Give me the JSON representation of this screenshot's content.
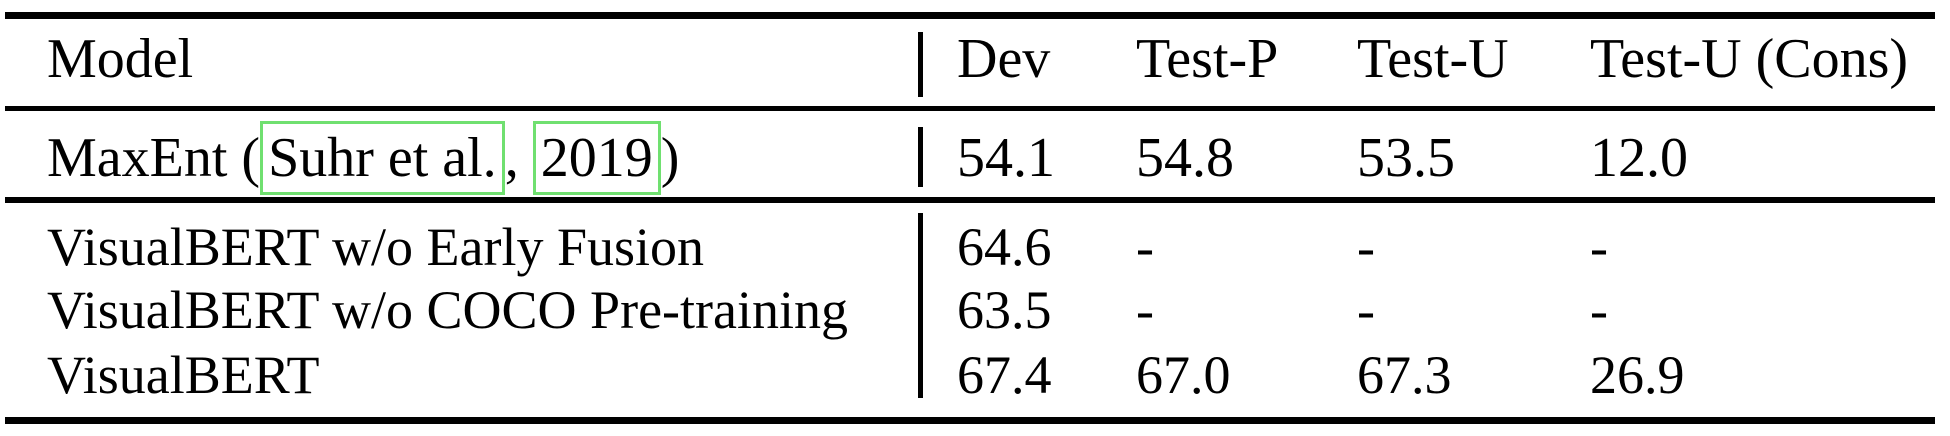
{
  "table": {
    "colors": {
      "text": "#000000",
      "rule": "#000000",
      "citation_box": "#70e070",
      "background": "#ffffff"
    },
    "header": {
      "model": "Model",
      "dev": "Dev",
      "testp": "Test-P",
      "testu": "Test-U",
      "cons": "Test-U (Cons)"
    },
    "rows": [
      {
        "model_prefix": "MaxEnt (",
        "cite_author": "Suhr et al.",
        "cite_comma": ", ",
        "cite_year": "2019",
        "model_suffix": ")",
        "dev": "54.1",
        "testp": "54.8",
        "testu": "53.5",
        "cons": "12.0"
      },
      {
        "model": "VisualBERT w/o Early Fusion",
        "dev": "64.6",
        "testp": "-",
        "testu": "-",
        "cons": "-"
      },
      {
        "model": "VisualBERT w/o COCO Pre-training",
        "dev": "63.5",
        "testp": "-",
        "testu": "-",
        "cons": "-"
      },
      {
        "model": "VisualBERT",
        "dev": "67.4",
        "testp": "67.0",
        "testu": "67.3",
        "cons": "26.9"
      }
    ]
  },
  "chart_data": {
    "type": "table",
    "columns": [
      "Model",
      "Dev",
      "Test-P",
      "Test-U",
      "Test-U (Cons)"
    ],
    "rows": [
      [
        "MaxEnt (Suhr et al., 2019)",
        54.1,
        54.8,
        53.5,
        12.0
      ],
      [
        "VisualBERT w/o Early Fusion",
        64.6,
        null,
        null,
        null
      ],
      [
        "VisualBERT w/o COCO Pre-training",
        63.5,
        null,
        null,
        null
      ],
      [
        "VisualBERT",
        67.4,
        67.0,
        67.3,
        26.9
      ]
    ]
  }
}
